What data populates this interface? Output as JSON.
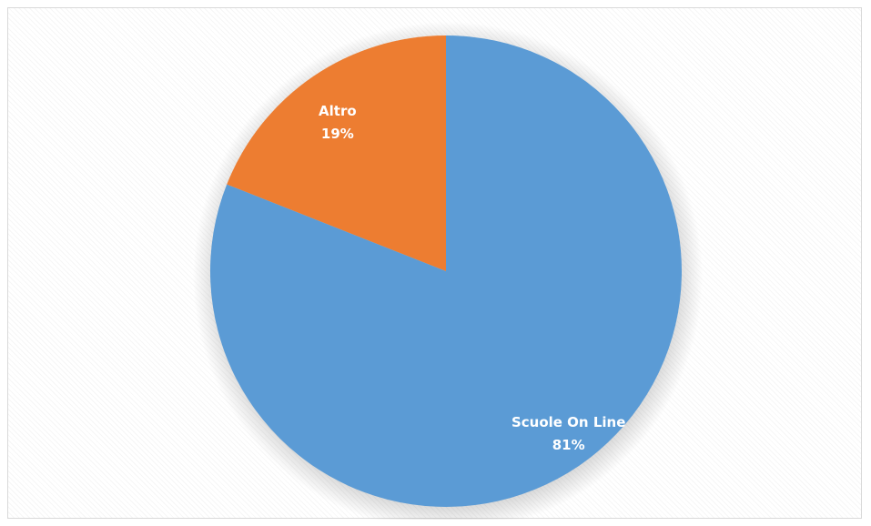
{
  "chart_data": {
    "type": "pie",
    "categories": [
      "Altro",
      "Scuole On Line"
    ],
    "values": [
      19,
      81
    ],
    "labels": [
      "19%",
      "81%"
    ],
    "colors": [
      "#ED7D31",
      "#5B9BD5"
    ],
    "title": "",
    "legend": "none",
    "start_angle_deg": 0,
    "direction": "counterclockwise"
  }
}
